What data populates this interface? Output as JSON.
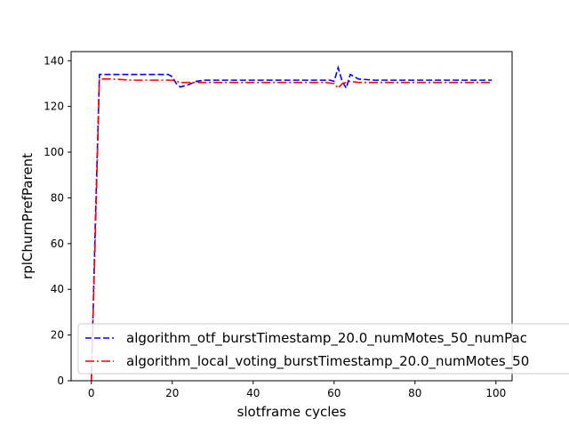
{
  "chart_data": {
    "type": "line",
    "title": "",
    "xlabel": "slotframe cycles",
    "ylabel": "rplChurnPrefParent",
    "xlim": [
      -5,
      104
    ],
    "ylim": [
      0,
      144
    ],
    "xticks": [
      0,
      20,
      40,
      60,
      80,
      100
    ],
    "yticks": [
      0,
      20,
      40,
      60,
      80,
      100,
      120,
      140
    ],
    "grid": false,
    "legend_position": "lower-left",
    "series": [
      {
        "name": "algorithm_otf_burstTimestamp_20.0_numMotes_50_numPac",
        "color": "#0000ff",
        "linestyle": "dashed",
        "points": [
          [
            0,
            0
          ],
          [
            1,
            70
          ],
          [
            2,
            134
          ],
          [
            5,
            134
          ],
          [
            10,
            134
          ],
          [
            15,
            134
          ],
          [
            19,
            134
          ],
          [
            20,
            133
          ],
          [
            21,
            130
          ],
          [
            22,
            128.5
          ],
          [
            24,
            129.5
          ],
          [
            26,
            131
          ],
          [
            28,
            131.5
          ],
          [
            35,
            131.5
          ],
          [
            45,
            131.5
          ],
          [
            55,
            131.5
          ],
          [
            59,
            131.5
          ],
          [
            60,
            131
          ],
          [
            61,
            137
          ],
          [
            62,
            131
          ],
          [
            63,
            128
          ],
          [
            64,
            134
          ],
          [
            66,
            132
          ],
          [
            70,
            131.5
          ],
          [
            80,
            131.5
          ],
          [
            90,
            131.5
          ],
          [
            99,
            131.5
          ]
        ]
      },
      {
        "name": "algorithm_local_voting_burstTimestamp_20.0_numMotes_50",
        "color": "#ff0000",
        "linestyle": "dashdot",
        "points": [
          [
            0,
            0
          ],
          [
            1,
            65
          ],
          [
            2,
            132
          ],
          [
            5,
            132
          ],
          [
            10,
            131.5
          ],
          [
            15,
            131.5
          ],
          [
            20,
            131.5
          ],
          [
            22,
            130.5
          ],
          [
            30,
            130.5
          ],
          [
            40,
            130.5
          ],
          [
            50,
            130.5
          ],
          [
            58,
            130.5
          ],
          [
            60,
            130
          ],
          [
            61,
            128
          ],
          [
            62,
            130
          ],
          [
            64,
            131
          ],
          [
            66,
            130.5
          ],
          [
            70,
            130.5
          ],
          [
            80,
            130.5
          ],
          [
            90,
            130.5
          ],
          [
            99,
            130.5
          ]
        ]
      }
    ]
  }
}
